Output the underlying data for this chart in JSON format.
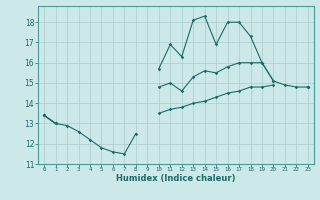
{
  "title": "",
  "xlabel": "Humidex (Indice chaleur)",
  "ylabel": "",
  "bg_color": "#cce8e8",
  "grid_color": "#aacccc",
  "line_color": "#1a6b6b",
  "xlim": [
    -0.5,
    23.5
  ],
  "ylim": [
    11,
    18.8
  ],
  "yticks": [
    11,
    12,
    13,
    14,
    15,
    16,
    17,
    18
  ],
  "xticks": [
    0,
    1,
    2,
    3,
    4,
    5,
    6,
    7,
    8,
    9,
    10,
    11,
    12,
    13,
    14,
    15,
    16,
    17,
    18,
    19,
    20,
    21,
    22,
    23
  ],
  "hours": [
    0,
    1,
    2,
    3,
    4,
    5,
    6,
    7,
    8,
    9,
    10,
    11,
    12,
    13,
    14,
    15,
    16,
    17,
    18,
    19,
    20,
    21,
    22,
    23
  ],
  "line_max": [
    13.4,
    13.0,
    12.9,
    12.6,
    12.2,
    11.8,
    11.6,
    11.5,
    12.5,
    null,
    15.7,
    16.9,
    16.3,
    18.1,
    18.3,
    16.9,
    18.0,
    18.0,
    17.3,
    16.0,
    15.1,
    14.9,
    14.8,
    14.8
  ],
  "line_mean": [
    13.4,
    13.0,
    null,
    null,
    null,
    null,
    null,
    null,
    null,
    null,
    14.8,
    15.0,
    14.6,
    15.3,
    15.6,
    15.5,
    15.8,
    16.0,
    16.0,
    16.0,
    15.1,
    null,
    null,
    14.8
  ],
  "line_min": [
    13.4,
    13.0,
    null,
    null,
    null,
    null,
    null,
    null,
    null,
    null,
    13.5,
    13.7,
    13.8,
    14.0,
    14.1,
    14.3,
    14.5,
    14.6,
    14.8,
    14.8,
    14.9,
    null,
    null,
    14.8
  ]
}
